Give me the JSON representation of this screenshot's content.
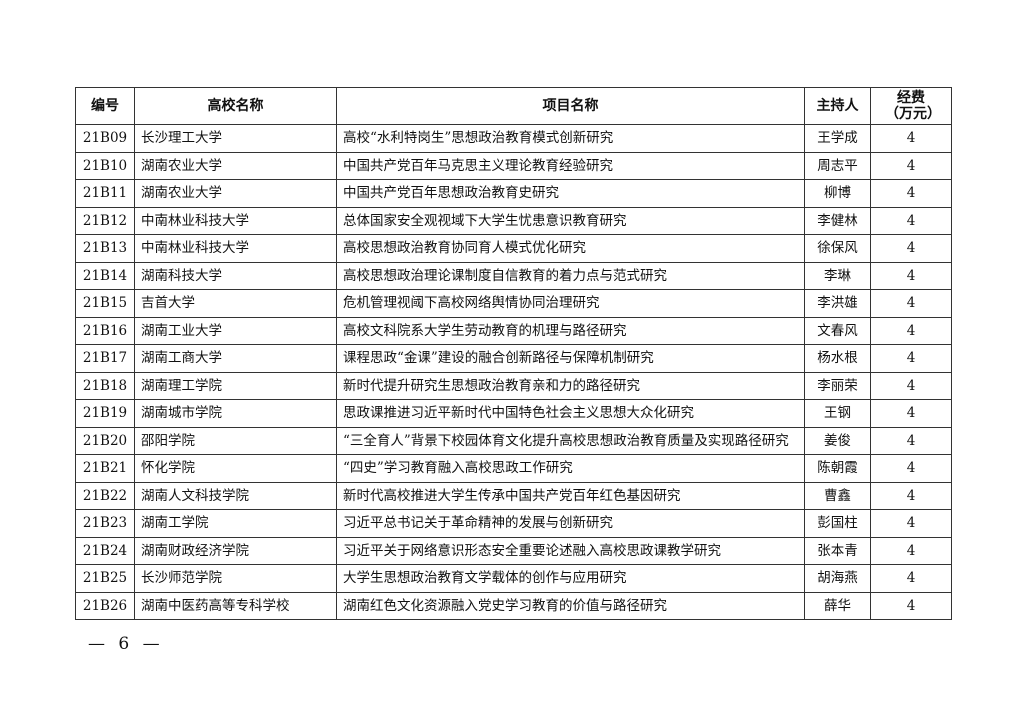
{
  "table": {
    "headers": [
      "编号",
      "高校名称",
      "项目名称",
      "主持人",
      "经费（万元）"
    ],
    "rows": [
      [
        "21B09",
        "长沙理工大学",
        "高校“水利特岗生”思想政治教育模式创新研究",
        "王学成",
        "4"
      ],
      [
        "21B10",
        "湖南农业大学",
        "中国共产党百年马克思主义理论教育经验研究",
        "周志平",
        "4"
      ],
      [
        "21B11",
        "湖南农业大学",
        "中国共产党百年思想政治教育史研究",
        "柳博",
        "4"
      ],
      [
        "21B12",
        "中南林业科技大学",
        "总体国家安全观视域下大学生忧患意识教育研究",
        "李健林",
        "4"
      ],
      [
        "21B13",
        "中南林业科技大学",
        "高校思想政治教育协同育人模式优化研究",
        "徐保风",
        "4"
      ],
      [
        "21B14",
        "湖南科技大学",
        "高校思想政治理论课制度自信教育的着力点与范式研究",
        "李琳",
        "4"
      ],
      [
        "21B15",
        "吉首大学",
        "危机管理视阈下高校网络舆情协同治理研究",
        "李洪雄",
        "4"
      ],
      [
        "21B16",
        "湖南工业大学",
        "高校文科院系大学生劳动教育的机理与路径研究",
        "文春风",
        "4"
      ],
      [
        "21B17",
        "湖南工商大学",
        "课程思政“金课”建设的融合创新路径与保障机制研究",
        "杨水根",
        "4"
      ],
      [
        "21B18",
        "湖南理工学院",
        "新时代提升研究生思想政治教育亲和力的路径研究",
        "李丽荣",
        "4"
      ],
      [
        "21B19",
        "湖南城市学院",
        "思政课推进习近平新时代中国特色社会主义思想大众化研究",
        "王钢",
        "4"
      ],
      [
        "21B20",
        "邵阳学院",
        "“三全育人”背景下校园体育文化提升高校思想政治教育质量及实现路径研究",
        "姜俊",
        "4"
      ],
      [
        "21B21",
        "怀化学院",
        "“四史”学习教育融入高校思政工作研究",
        "陈朝霞",
        "4"
      ],
      [
        "21B22",
        "湖南人文科技学院",
        "新时代高校推进大学生传承中国共产党百年红色基因研究",
        "曹鑫",
        "4"
      ],
      [
        "21B23",
        "湖南工学院",
        "习近平总书记关于革命精神的发展与创新研究",
        "彭国柱",
        "4"
      ],
      [
        "21B24",
        "湖南财政经济学院",
        "习近平关于网络意识形态安全重要论述融入高校思政课教学研究",
        "张本青",
        "4"
      ],
      [
        "21B25",
        "长沙师范学院",
        "大学生思想政治教育文学载体的创作与应用研究",
        "胡海燕",
        "4"
      ],
      [
        "21B26",
        "湖南中医药高等专科学校",
        "湖南红色文化资源融入党史学习教育的价值与路径研究",
        "薛华",
        "4"
      ]
    ]
  },
  "footer": {
    "page_number": "— 6 —"
  }
}
